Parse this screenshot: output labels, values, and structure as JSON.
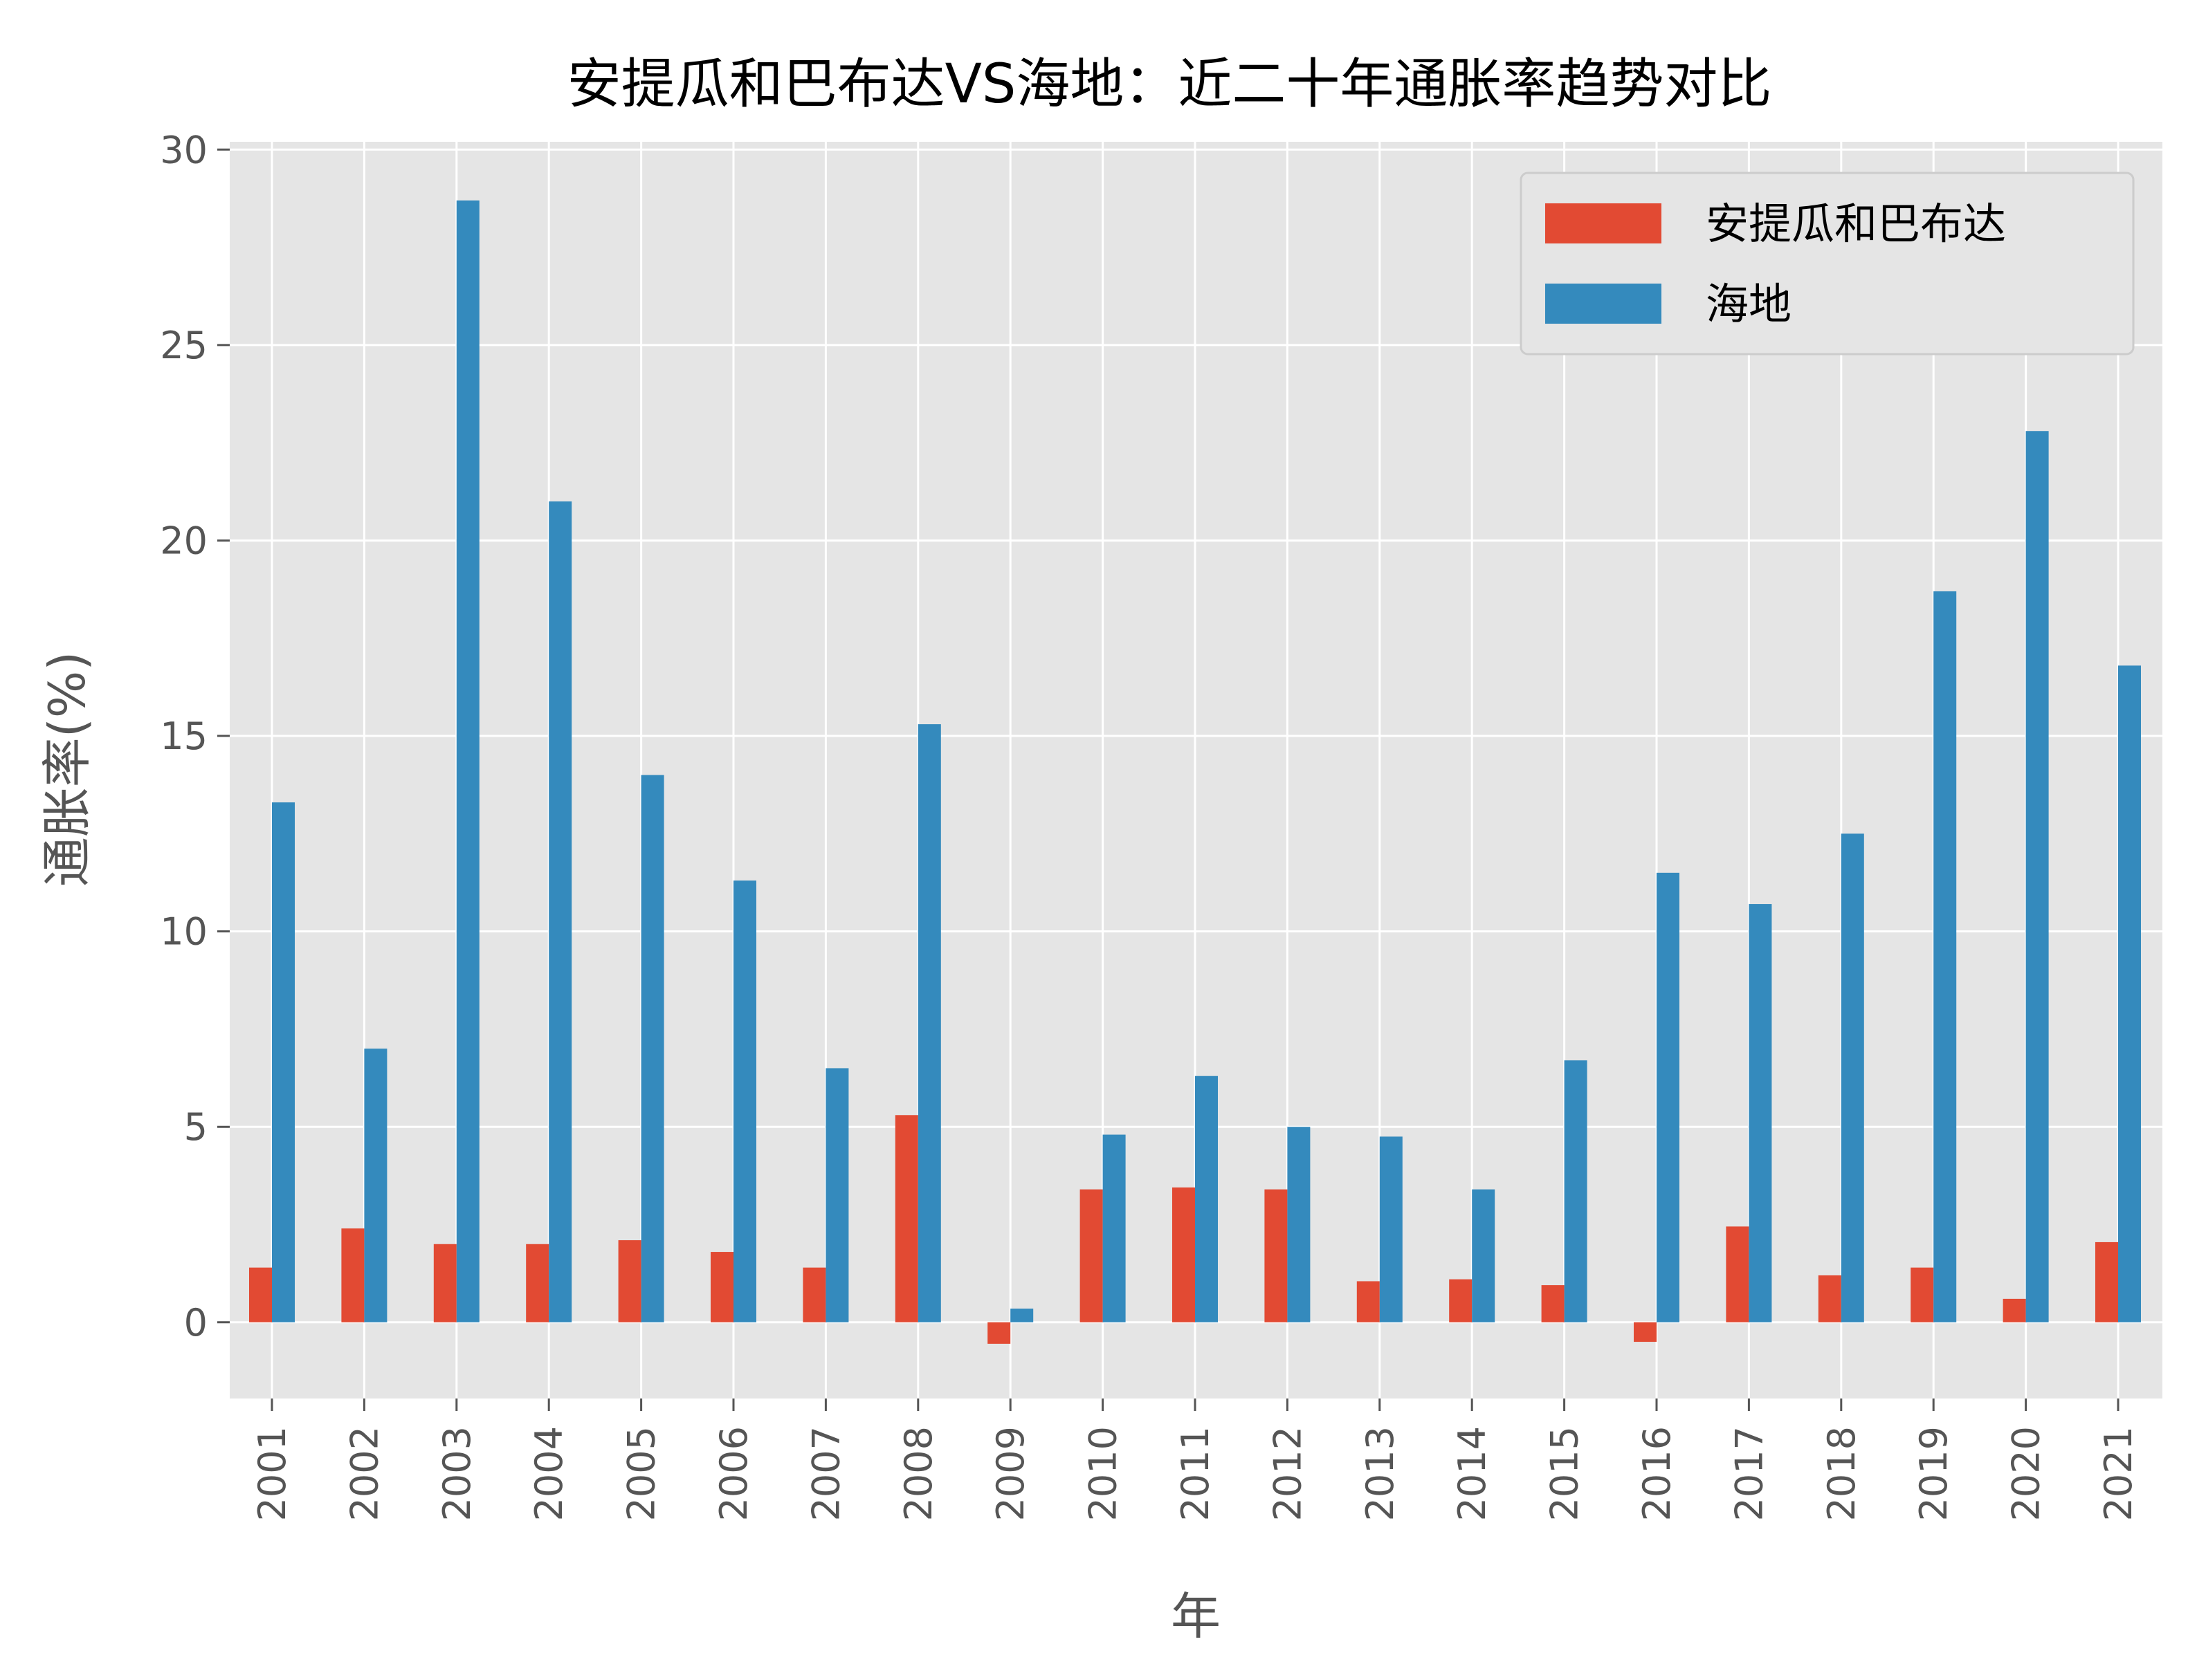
{
  "chart_data": {
    "type": "bar",
    "title": "安提瓜和巴布达VS海地：近二十年通胀率趋势对比",
    "xlabel": "年",
    "ylabel": "通胀率(%)",
    "categories": [
      "2001",
      "2002",
      "2003",
      "2004",
      "2005",
      "2006",
      "2007",
      "2008",
      "2009",
      "2010",
      "2011",
      "2012",
      "2013",
      "2014",
      "2015",
      "2016",
      "2017",
      "2018",
      "2019",
      "2020",
      "2021"
    ],
    "series": [
      {
        "name": "安提瓜和巴布达",
        "color": "#E24A33",
        "values": [
          1.4,
          2.4,
          2.0,
          2.0,
          2.1,
          1.8,
          1.4,
          5.3,
          -0.55,
          3.4,
          3.45,
          3.4,
          1.05,
          1.1,
          0.95,
          -0.5,
          2.45,
          1.2,
          1.4,
          0.6,
          2.05
        ]
      },
      {
        "name": "海地",
        "color": "#348ABD",
        "values": [
          13.3,
          7.0,
          28.7,
          21.0,
          14.0,
          11.3,
          6.5,
          15.3,
          0.35,
          4.8,
          6.3,
          5.0,
          4.75,
          3.4,
          6.7,
          11.5,
          10.7,
          12.5,
          18.7,
          22.8,
          16.8
        ]
      }
    ],
    "yticks": [
      "0",
      "5",
      "10",
      "15",
      "20",
      "25",
      "30"
    ],
    "ylim": [
      -1.95,
      30.2
    ],
    "grid": true,
    "legend_position": "top-right",
    "plot_background": "#E5E5E5"
  }
}
